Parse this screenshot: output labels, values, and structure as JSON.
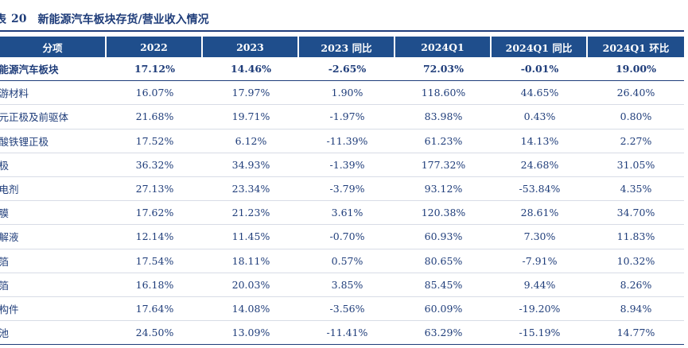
{
  "title": {
    "label": "表",
    "number": "20",
    "text": "新能源汽车板块存货/营业收入情况"
  },
  "table": {
    "headers": [
      "分项",
      "2022",
      "2023",
      "2023 同比",
      "2024Q1",
      "2024Q1 同比",
      "2024Q1 环比"
    ],
    "rows": [
      [
        "新能源汽车板块",
        "17.12%",
        "14.46%",
        "-2.65%",
        "72.03%",
        "-0.01%",
        "19.00%"
      ],
      [
        "上游材料",
        "16.07%",
        "17.97%",
        "1.90%",
        "118.60%",
        "44.65%",
        "26.40%"
      ],
      [
        "三元正极及前驱体",
        "21.68%",
        "19.71%",
        "-1.97%",
        "83.98%",
        "0.43%",
        "0.80%"
      ],
      [
        "磷酸铁锂正极",
        "17.52%",
        "6.12%",
        "-11.39%",
        "61.23%",
        "14.13%",
        "2.27%"
      ],
      [
        "负极",
        "36.32%",
        "34.93%",
        "-1.39%",
        "177.32%",
        "24.68%",
        "31.05%"
      ],
      [
        "导电剂",
        "27.13%",
        "23.34%",
        "-3.79%",
        "93.12%",
        "-53.84%",
        "4.35%"
      ],
      [
        "隔膜",
        "17.62%",
        "21.23%",
        "3.61%",
        "120.38%",
        "28.61%",
        "34.70%"
      ],
      [
        "电解液",
        "12.14%",
        "11.45%",
        "-0.70%",
        "60.93%",
        "7.30%",
        "11.83%"
      ],
      [
        "铜箔",
        "17.54%",
        "18.11%",
        "0.57%",
        "80.65%",
        "-7.91%",
        "10.32%"
      ],
      [
        "铝箔",
        "16.18%",
        "20.03%",
        "3.85%",
        "85.45%",
        "9.44%",
        "8.26%"
      ],
      [
        "结构件",
        "17.64%",
        "14.08%",
        "-3.56%",
        "60.09%",
        "-19.20%",
        "8.94%"
      ],
      [
        "电池",
        "24.50%",
        "13.09%",
        "-11.41%",
        "63.29%",
        "-15.19%",
        "14.77%"
      ]
    ]
  }
}
